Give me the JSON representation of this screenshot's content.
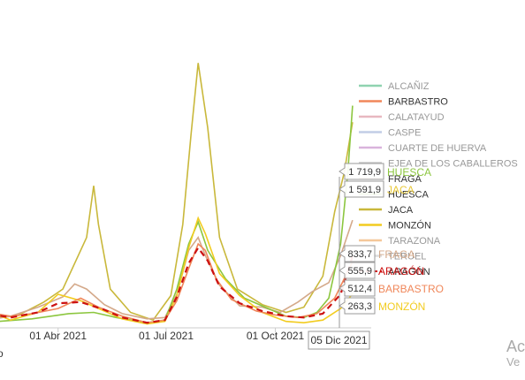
{
  "chart_data": {
    "type": "line",
    "title": "",
    "xlabel": "",
    "ylabel": "",
    "x_ticks": [
      {
        "label": "01 Abr 2021",
        "date": "2021-04-01"
      },
      {
        "label": "01 Jul 2021",
        "date": "2021-07-01"
      },
      {
        "label": "01 Oct 2021",
        "date": "2021-10-01"
      }
    ],
    "x_range": [
      "2021-01-16",
      "2021-12-20"
    ],
    "y_range": [
      0,
      2100
    ],
    "grid": false,
    "legend_position": "right",
    "series": [
      {
        "name": "ALCAÑIZ",
        "color": "#8fd3b0",
        "visible": false
      },
      {
        "name": "BARBASTRO",
        "color": "#f0875a",
        "visible": true,
        "style": "solid",
        "points": [
          [
            "2021-01-16",
            170
          ],
          [
            "2021-02-01",
            120
          ],
          [
            "2021-02-20",
            90
          ],
          [
            "2021-03-10",
            110
          ],
          [
            "2021-04-01",
            150
          ],
          [
            "2021-04-20",
            230
          ],
          [
            "2021-05-05",
            160
          ],
          [
            "2021-05-25",
            90
          ],
          [
            "2021-06-15",
            40
          ],
          [
            "2021-06-30",
            60
          ],
          [
            "2021-07-10",
            210
          ],
          [
            "2021-07-20",
            460
          ],
          [
            "2021-07-28",
            650
          ],
          [
            "2021-08-03",
            600
          ],
          [
            "2021-08-12",
            380
          ],
          [
            "2021-08-25",
            220
          ],
          [
            "2021-09-15",
            130
          ],
          [
            "2021-10-01",
            100
          ],
          [
            "2021-10-20",
            80
          ],
          [
            "2021-11-05",
            110
          ],
          [
            "2021-11-20",
            230
          ],
          [
            "2021-12-05",
            512.4
          ]
        ]
      },
      {
        "name": "CALATAYUD",
        "color": "#e8b8c0",
        "visible": false
      },
      {
        "name": "CASPE",
        "color": "#c2cde6",
        "visible": false
      },
      {
        "name": "CUARTE DE HUERVA",
        "color": "#d9b3dc",
        "visible": false
      },
      {
        "name": "EJEA DE LOS CABALLEROS",
        "color": "#cccccc",
        "visible": false
      },
      {
        "name": "FRAGA",
        "color": "#d4a98a",
        "visible": true,
        "style": "solid",
        "points": [
          [
            "2021-01-16",
            80
          ],
          [
            "2021-02-01",
            60
          ],
          [
            "2021-02-20",
            90
          ],
          [
            "2021-03-15",
            160
          ],
          [
            "2021-04-05",
            240
          ],
          [
            "2021-04-15",
            340
          ],
          [
            "2021-04-25",
            300
          ],
          [
            "2021-05-10",
            180
          ],
          [
            "2021-05-25",
            110
          ],
          [
            "2021-06-15",
            70
          ],
          [
            "2021-06-30",
            80
          ],
          [
            "2021-07-10",
            260
          ],
          [
            "2021-07-20",
            600
          ],
          [
            "2021-07-28",
            700
          ],
          [
            "2021-08-03",
            560
          ],
          [
            "2021-08-15",
            330
          ],
          [
            "2021-09-01",
            170
          ],
          [
            "2021-09-20",
            160
          ],
          [
            "2021-10-05",
            120
          ],
          [
            "2021-10-20",
            200
          ],
          [
            "2021-11-01",
            280
          ],
          [
            "2021-11-15",
            350
          ],
          [
            "2021-11-25",
            560
          ],
          [
            "2021-12-05",
            833.7
          ]
        ]
      },
      {
        "name": "HUESCA",
        "color": "#8cc63f",
        "visible": true,
        "style": "solid",
        "points": [
          [
            "2021-01-16",
            40
          ],
          [
            "2021-02-10",
            50
          ],
          [
            "2021-03-10",
            70
          ],
          [
            "2021-04-10",
            110
          ],
          [
            "2021-05-01",
            120
          ],
          [
            "2021-05-20",
            80
          ],
          [
            "2021-06-15",
            40
          ],
          [
            "2021-06-30",
            60
          ],
          [
            "2021-07-10",
            300
          ],
          [
            "2021-07-20",
            650
          ],
          [
            "2021-07-28",
            820
          ],
          [
            "2021-08-05",
            600
          ],
          [
            "2021-08-20",
            380
          ],
          [
            "2021-09-05",
            230
          ],
          [
            "2021-09-25",
            150
          ],
          [
            "2021-10-10",
            90
          ],
          [
            "2021-10-25",
            80
          ],
          [
            "2021-11-05",
            120
          ],
          [
            "2021-11-15",
            230
          ],
          [
            "2021-11-25",
            650
          ],
          [
            "2021-12-01",
            1200
          ],
          [
            "2021-12-05",
            1719.9
          ]
        ]
      },
      {
        "name": "JACA",
        "color": "#c9b83b",
        "visible": true,
        "style": "solid",
        "points": [
          [
            "2021-01-16",
            100
          ],
          [
            "2021-02-01",
            80
          ],
          [
            "2021-02-25",
            90
          ],
          [
            "2021-03-20",
            200
          ],
          [
            "2021-04-05",
            300
          ],
          [
            "2021-04-25",
            700
          ],
          [
            "2021-05-01",
            1100
          ],
          [
            "2021-05-05",
            800
          ],
          [
            "2021-05-15",
            300
          ],
          [
            "2021-06-01",
            120
          ],
          [
            "2021-06-20",
            60
          ],
          [
            "2021-07-05",
            250
          ],
          [
            "2021-07-15",
            800
          ],
          [
            "2021-07-22",
            1500
          ],
          [
            "2021-07-28",
            2050
          ],
          [
            "2021-08-05",
            1550
          ],
          [
            "2021-08-15",
            700
          ],
          [
            "2021-08-30",
            300
          ],
          [
            "2021-09-20",
            180
          ],
          [
            "2021-10-10",
            120
          ],
          [
            "2021-10-25",
            160
          ],
          [
            "2021-11-10",
            400
          ],
          [
            "2021-11-20",
            900
          ],
          [
            "2021-11-28",
            1200
          ],
          [
            "2021-12-05",
            1591.9
          ]
        ]
      },
      {
        "name": "MONZÓN",
        "color": "#f2cc20",
        "visible": true,
        "style": "solid",
        "points": [
          [
            "2021-01-16",
            90
          ],
          [
            "2021-02-01",
            130
          ],
          [
            "2021-02-20",
            60
          ],
          [
            "2021-03-15",
            120
          ],
          [
            "2021-04-01",
            260
          ],
          [
            "2021-04-20",
            210
          ],
          [
            "2021-05-10",
            130
          ],
          [
            "2021-05-25",
            70
          ],
          [
            "2021-06-15",
            30
          ],
          [
            "2021-06-30",
            50
          ],
          [
            "2021-07-10",
            250
          ],
          [
            "2021-07-20",
            620
          ],
          [
            "2021-07-28",
            850
          ],
          [
            "2021-08-03",
            730
          ],
          [
            "2021-08-15",
            420
          ],
          [
            "2021-09-01",
            250
          ],
          [
            "2021-09-20",
            120
          ],
          [
            "2021-10-10",
            50
          ],
          [
            "2021-10-25",
            40
          ],
          [
            "2021-11-10",
            60
          ],
          [
            "2021-11-25",
            150
          ],
          [
            "2021-12-05",
            263.3
          ]
        ]
      },
      {
        "name": "TARAZONA",
        "color": "#f5c89a",
        "visible": false
      },
      {
        "name": "TERUEL",
        "color": "#dddddd",
        "visible": false
      },
      {
        "name": "ARAGÓN",
        "color": "#cc1111",
        "visible": true,
        "style": "dashed",
        "points": [
          [
            "2021-01-16",
            140
          ],
          [
            "2021-02-01",
            110
          ],
          [
            "2021-02-20",
            80
          ],
          [
            "2021-03-15",
            120
          ],
          [
            "2021-04-01",
            190
          ],
          [
            "2021-04-20",
            200
          ],
          [
            "2021-05-10",
            140
          ],
          [
            "2021-05-25",
            80
          ],
          [
            "2021-06-15",
            40
          ],
          [
            "2021-06-30",
            60
          ],
          [
            "2021-07-10",
            240
          ],
          [
            "2021-07-20",
            500
          ],
          [
            "2021-07-28",
            620
          ],
          [
            "2021-08-05",
            520
          ],
          [
            "2021-08-15",
            320
          ],
          [
            "2021-09-01",
            190
          ],
          [
            "2021-09-20",
            130
          ],
          [
            "2021-10-10",
            90
          ],
          [
            "2021-10-25",
            80
          ],
          [
            "2021-11-10",
            110
          ],
          [
            "2021-11-25",
            260
          ],
          [
            "2021-12-05",
            555.9
          ]
        ]
      }
    ],
    "tooltip": {
      "date": "05 Dic 2021",
      "entries": [
        {
          "value": "1 719,9",
          "name": "HUESCA",
          "color": "#8cc63f"
        },
        {
          "value": "1 591,9",
          "name": "JACA",
          "color": "#e8c838"
        },
        {
          "value": "833,7",
          "name": "FRAGA",
          "color": "#d4a98a"
        },
        {
          "value": "555,9",
          "name": "ARAGÓN",
          "color": "#cc1111"
        },
        {
          "value": "512,4",
          "name": "BARBASTRO",
          "color": "#f0875a"
        },
        {
          "value": "263,3",
          "name": "MONZÓN",
          "color": "#f2cc20"
        }
      ]
    }
  },
  "watermark": {
    "line1": "Ac",
    "line2": "Ve"
  },
  "partial_axis_text": "o"
}
